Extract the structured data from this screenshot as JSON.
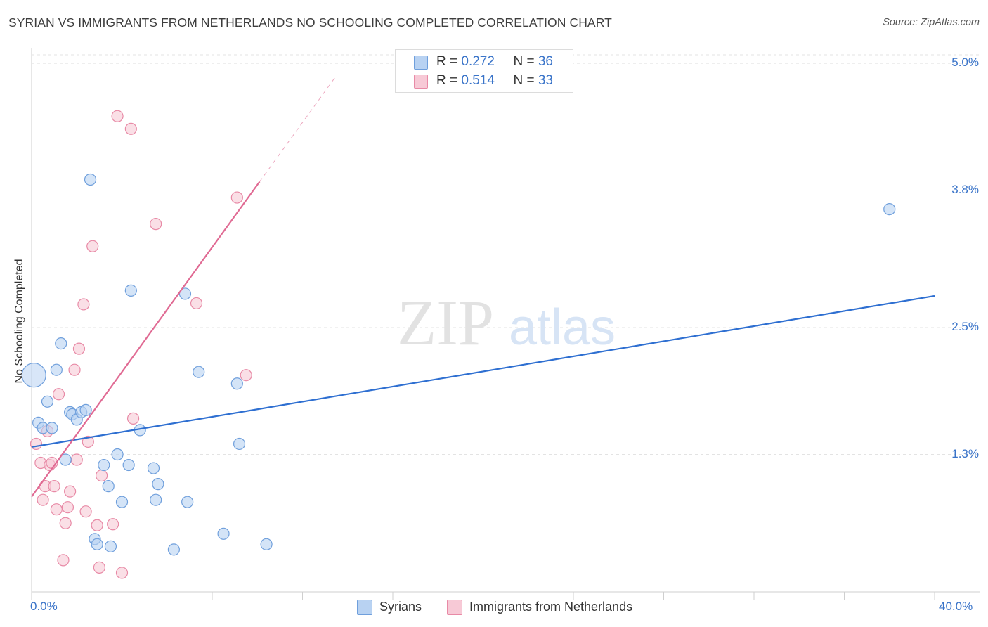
{
  "header": {
    "title": "SYRIAN VS IMMIGRANTS FROM NETHERLANDS NO SCHOOLING COMPLETED CORRELATION CHART",
    "source": "Source: ZipAtlas.com"
  },
  "watermark": {
    "zip": "ZIP",
    "atlas": "atlas"
  },
  "legend": {
    "rows": [
      {
        "r_label": "R = ",
        "r_value": "0.272",
        "n_label": "N = ",
        "n_value": "36"
      },
      {
        "r_label": "R = ",
        "r_value": "0.514",
        "n_label": "N = ",
        "n_value": "33"
      }
    ]
  },
  "colors": {
    "blue_fill": "#b8d2f2",
    "blue_stroke": "#6f9fdc",
    "blue_line": "#2e6fd1",
    "pink_fill": "#f7c9d6",
    "pink_stroke": "#e88aa6",
    "pink_line": "#e06a93",
    "grid": "#e3e3e3",
    "tick_text": "#3a74c9"
  },
  "chart_data": {
    "type": "scatter",
    "title": "SYRIAN VS IMMIGRANTS FROM NETHERLANDS NO SCHOOLING COMPLETED CORRELATION CHART",
    "xlabel": "",
    "ylabel": "No Schooling Completed",
    "xlim": [
      0,
      40
    ],
    "ylim": [
      0,
      5.2
    ],
    "x_tick_labels": [
      "0.0%",
      "40.0%"
    ],
    "y_ticks": [
      1.3,
      2.5,
      3.8,
      5.0
    ],
    "y_tick_labels": [
      "1.3%",
      "2.5%",
      "3.8%",
      "5.0%"
    ],
    "series": [
      {
        "name": "Syrians",
        "points": [
          [
            0.1,
            2.05
          ],
          [
            0.3,
            1.6
          ],
          [
            0.5,
            1.55
          ],
          [
            0.7,
            1.8
          ],
          [
            0.9,
            1.55
          ],
          [
            1.1,
            2.1
          ],
          [
            1.3,
            2.35
          ],
          [
            1.5,
            1.25
          ],
          [
            1.7,
            1.7
          ],
          [
            1.8,
            1.68
          ],
          [
            2.0,
            1.63
          ],
          [
            2.2,
            1.7
          ],
          [
            2.4,
            1.72
          ],
          [
            2.6,
            3.9
          ],
          [
            2.8,
            0.5
          ],
          [
            2.9,
            0.45
          ],
          [
            3.2,
            1.2
          ],
          [
            3.4,
            1.0
          ],
          [
            3.5,
            0.43
          ],
          [
            3.8,
            1.3
          ],
          [
            4.0,
            0.85
          ],
          [
            4.3,
            1.2
          ],
          [
            4.4,
            2.85
          ],
          [
            4.8,
            1.53
          ],
          [
            5.4,
            1.17
          ],
          [
            5.5,
            0.87
          ],
          [
            5.6,
            1.02
          ],
          [
            6.3,
            0.4
          ],
          [
            6.8,
            2.82
          ],
          [
            6.9,
            0.85
          ],
          [
            7.4,
            2.08
          ],
          [
            8.5,
            0.55
          ],
          [
            9.1,
            1.97
          ],
          [
            9.2,
            1.4
          ],
          [
            10.4,
            0.45
          ],
          [
            38.0,
            3.62
          ]
        ]
      },
      {
        "name": "Immigrants from Netherlands",
        "points": [
          [
            0.2,
            1.4
          ],
          [
            0.4,
            1.22
          ],
          [
            0.5,
            0.87
          ],
          [
            0.6,
            1.0
          ],
          [
            0.7,
            1.52
          ],
          [
            0.8,
            1.2
          ],
          [
            0.9,
            1.22
          ],
          [
            1.0,
            1.0
          ],
          [
            1.1,
            0.78
          ],
          [
            1.2,
            1.87
          ],
          [
            1.4,
            0.3
          ],
          [
            1.5,
            0.65
          ],
          [
            1.6,
            0.8
          ],
          [
            1.7,
            0.95
          ],
          [
            1.9,
            2.1
          ],
          [
            2.0,
            1.25
          ],
          [
            2.1,
            2.3
          ],
          [
            2.3,
            2.72
          ],
          [
            2.4,
            0.76
          ],
          [
            2.5,
            1.42
          ],
          [
            2.7,
            3.27
          ],
          [
            2.9,
            0.63
          ],
          [
            3.0,
            0.23
          ],
          [
            3.1,
            1.1
          ],
          [
            3.6,
            0.64
          ],
          [
            3.8,
            4.5
          ],
          [
            4.0,
            0.18
          ],
          [
            4.4,
            4.38
          ],
          [
            4.5,
            1.64
          ],
          [
            5.5,
            3.48
          ],
          [
            7.3,
            2.73
          ],
          [
            9.1,
            3.73
          ],
          [
            9.5,
            2.05
          ]
        ]
      }
    ],
    "trend_lines": [
      {
        "name": "Syrians",
        "x": [
          0,
          40
        ],
        "y": [
          1.37,
          2.8
        ],
        "dashed_ext": null
      },
      {
        "name": "Immigrants from Netherlands",
        "x": [
          0,
          10.1
        ],
        "y": [
          0.9,
          3.88
        ],
        "dashed_ext": [
          10.1,
          13.5
        ]
      }
    ],
    "legend_entries": [
      "Syrians",
      "Immigrants from Netherlands"
    ]
  }
}
